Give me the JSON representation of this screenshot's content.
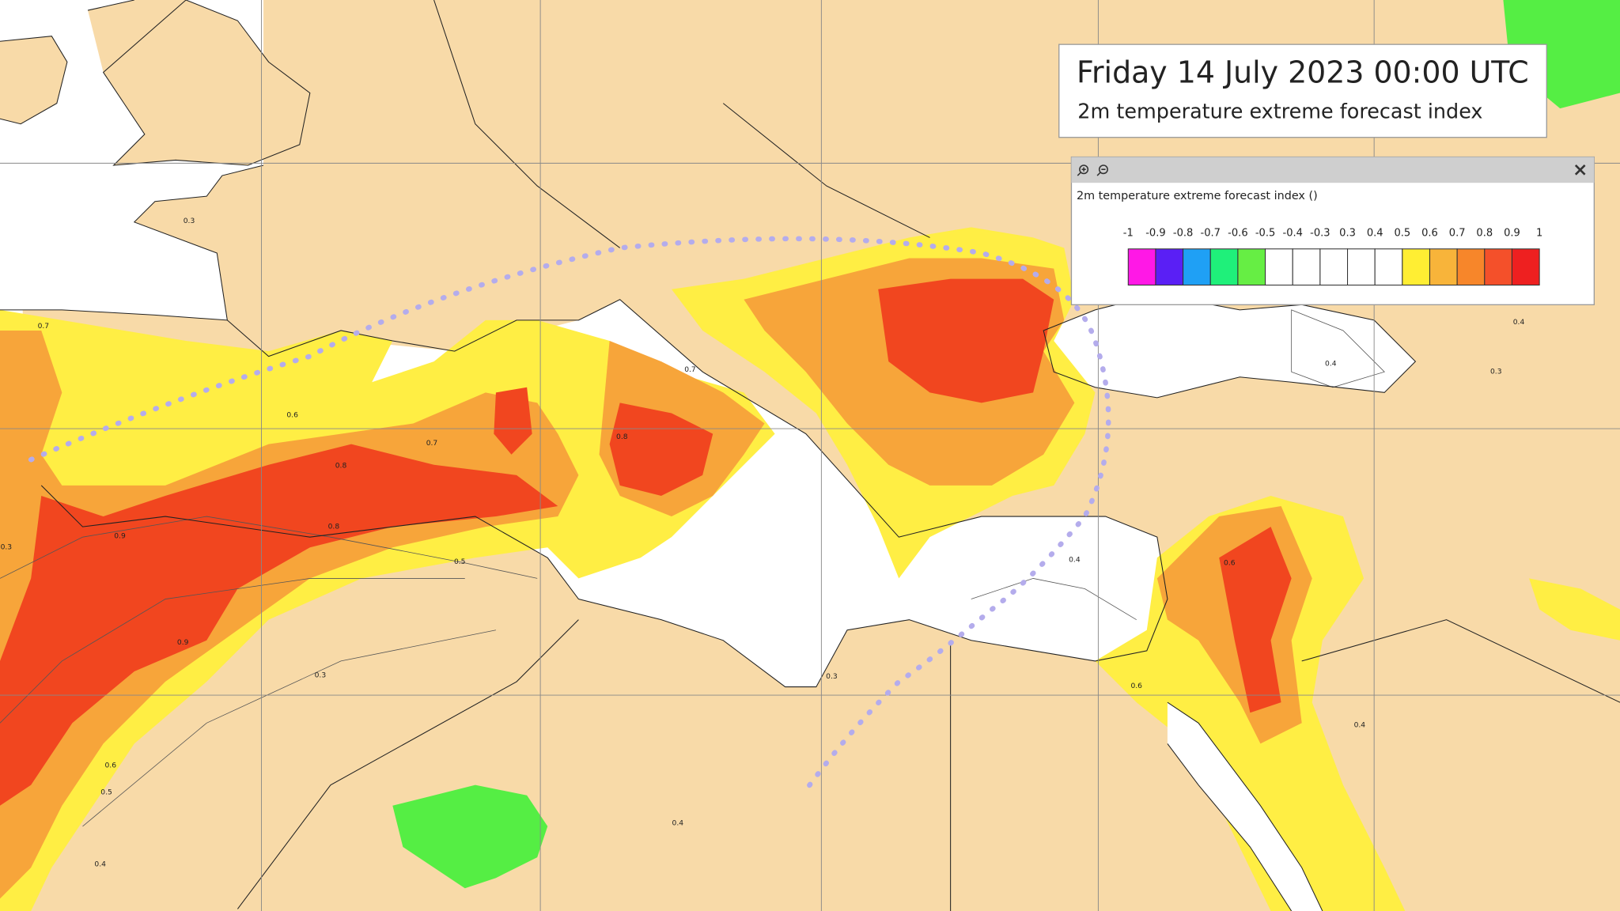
{
  "header": {
    "title": "Friday 14 July 2023 00:00 UTC",
    "subtitle": "2m temperature extreme forecast index"
  },
  "legend": {
    "title": "2m temperature extreme forecast index ()",
    "ticks": [
      -1,
      -0.9,
      -0.8,
      -0.7,
      -0.6,
      -0.5,
      -0.4,
      -0.3,
      0.3,
      0.4,
      0.5,
      0.6,
      0.7,
      0.8,
      0.9,
      1
    ],
    "colors": [
      "#ff18e6",
      "#5a1ff5",
      "#1fa0f5",
      "#1ff07a",
      "#66ee44",
      "#ffffff",
      "#ffffff",
      "#ffffff",
      "#ffffff",
      "#ffffff",
      "#ffee33",
      "#f8b43a",
      "#f7862a",
      "#f4502a",
      "#ee2020"
    ]
  },
  "map": {
    "contour_labels": [
      0.3,
      0.7,
      0.6,
      0.7,
      0.8,
      0.9,
      0.8,
      0.5,
      0.9,
      0.3,
      0.6,
      0.5,
      0.4,
      0.4,
      0.4,
      0.4,
      0.3,
      0.4,
      0.6,
      0.4,
      0.3,
      0.6,
      0.3,
      0.7,
      0.8
    ]
  }
}
